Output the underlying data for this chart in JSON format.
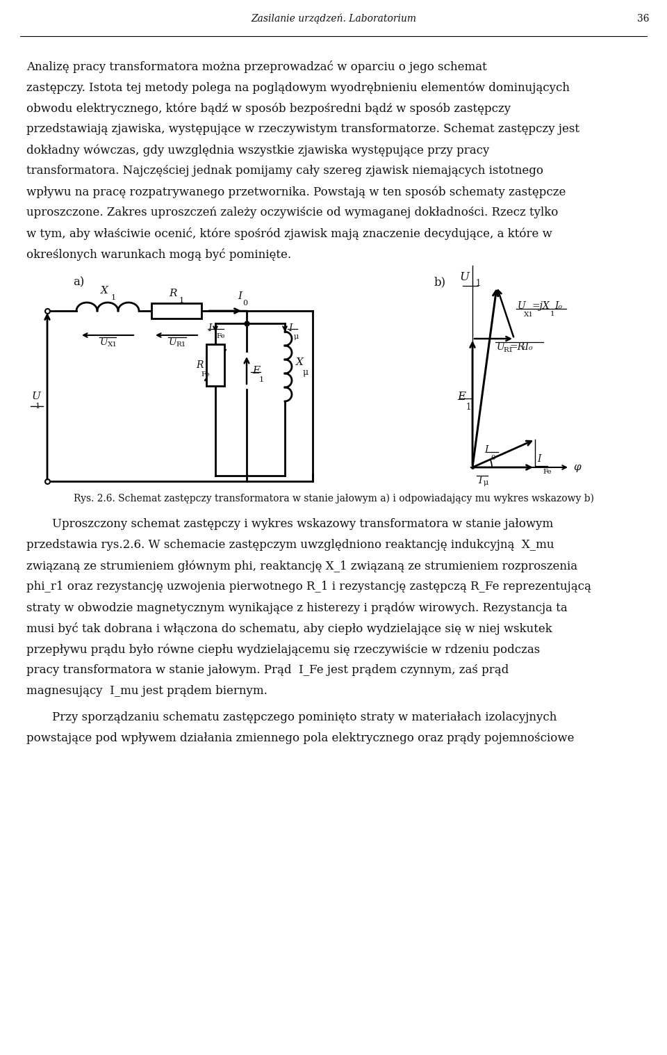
{
  "page_header": "Zasilanie urządzeń. Laboratorium",
  "page_number": "36",
  "background_color": "#ffffff",
  "text_color": "#111111",
  "para1_lines": [
    "Analizę pracy transformatora można przeprowadzać w oparciu o jego schemat",
    "zastępczy. Istota tej metody polega na poglądowym wyodrębnieniu elementów dominujących",
    "obwodu elektrycznego, które bądź w sposób bezpośredni bądź w sposób zastępczy",
    "przedstawiają zjawiska, występujące w rzeczywistym transformatorze. Schemat zastępczy jest",
    "dokładny wówczas, gdy uwzględnia wszystkie zjawiska występujące przy pracy",
    "transformatora. Najczęściej jednak pomijamy cały szereg zjawisk niemających istotnego",
    "wpływu na pracę rozpatrywanego przetwornika. Powstają w ten sposób schematy zastępcze",
    "uproszczone. Zakres uproszczeń zależy oczywiście od wymaganej dokładności. Rzecz tylko",
    "w tym, aby właściwie ocenić, które spośród zjawisk mają znaczenie decydujące, a które w",
    "określonych warunkach mogą być pominięte."
  ],
  "para2_lines": [
    "Uproszczony schemat zastępczy i wykres wskazowy transformatora w stanie jałowym",
    "przedstawia rys.2.6. W schemacie zastępczym uwzględniono reaktancję indukcyjną  X_mu",
    "związaną ze strumieniem głównym phi, reaktancję X_1 związaną ze strumieniem rozproszenia",
    "phi_r1 oraz rezystancję uzwojenia pierwotnego R_1 i rezystancję zastępczą R_Fe reprezentującą",
    "straty w obwodzie magnetycznym wynikające z histerezy i prądów wirowych. Rezystancja ta",
    "musi być tak dobrana i włączona do schematu, aby ciepło wydzielające się w niej wskutek",
    "przepływu prądu było równe ciepłu wydzielającemu się rzeczywiście w rdzeniu podczas",
    "pracy transformatora w stanie jałowym. Prąd  I_Fe jest prądem czynnym, zaś prąd",
    "magnesujący  I_mu jest prądem biernym."
  ],
  "para3_lines": [
    "Przy sporządzaniu schematu zastępczego pominięto straty w materiałach izolacyjnych",
    "powstające pod wpływem działania zmiennego pola elektrycznego oraz prądy pojemnościowe"
  ],
  "caption": "Rys. 2.6. Schemat zastępczy transformatora w stanie jałowym a) i odpowiadający mu wykres wskazowy b)"
}
